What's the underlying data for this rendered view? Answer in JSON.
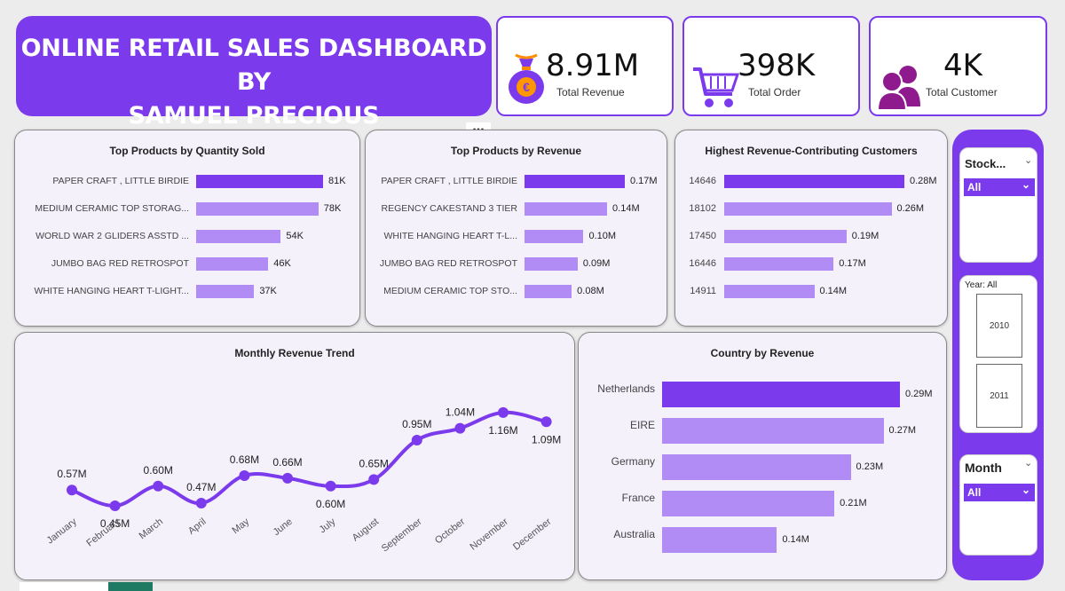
{
  "header": {
    "title_line1": "ONLINE RETAIL SALES DASHBOARD BY",
    "title_line2": "SAMUEL PRECIOUS"
  },
  "kpis": [
    {
      "value": "8.91M",
      "label": "Total Revenue",
      "icon": "money-bag-euro-icon"
    },
    {
      "value": "398K",
      "label": "Total Order",
      "icon": "shopping-cart-icon"
    },
    {
      "value": "4K",
      "label": "Total Customer",
      "icon": "users-icon"
    }
  ],
  "colors": {
    "accent": "#7c3aed",
    "bar_light": "#b28cf5",
    "card_bg": "#f4f1fb"
  },
  "more_options": "...",
  "chart_data": [
    {
      "type": "bar",
      "title": "Top Products by Quantity Sold",
      "categories": [
        "PAPER CRAFT , LITTLE BIRDIE",
        "MEDIUM CERAMIC TOP STORAG...",
        "WORLD WAR 2 GLIDERS ASSTD ...",
        "JUMBO BAG RED RETROSPOT",
        "WHITE HANGING HEART T-LIGHT..."
      ],
      "values": [
        81000,
        78000,
        54000,
        46000,
        37000
      ],
      "data_labels": [
        "81K",
        "78K",
        "54K",
        "46K",
        "37K"
      ]
    },
    {
      "type": "bar",
      "title": "Top Products by Revenue",
      "categories": [
        "PAPER CRAFT , LITTLE BIRDIE",
        "REGENCY CAKESTAND 3 TIER",
        "WHITE HANGING HEART T-L...",
        "JUMBO BAG RED RETROSPOT",
        "MEDIUM CERAMIC TOP STO..."
      ],
      "values": [
        0.17,
        0.14,
        0.1,
        0.09,
        0.08
      ],
      "data_labels": [
        "0.17M",
        "0.14M",
        "0.10M",
        "0.09M",
        "0.08M"
      ]
    },
    {
      "type": "bar",
      "title": "Highest Revenue-Contributing Customers",
      "categories": [
        "14646",
        "18102",
        "17450",
        "16446",
        "14911"
      ],
      "values": [
        0.28,
        0.26,
        0.19,
        0.17,
        0.14
      ],
      "data_labels": [
        "0.28M",
        "0.26M",
        "0.19M",
        "0.17M",
        "0.14M"
      ]
    },
    {
      "type": "line",
      "title": "Monthly Revenue Trend",
      "categories": [
        "January",
        "February",
        "March",
        "April",
        "May",
        "June",
        "July",
        "August",
        "September",
        "October",
        "November",
        "December"
      ],
      "values": [
        0.57,
        0.45,
        0.6,
        0.47,
        0.68,
        0.66,
        0.6,
        0.65,
        0.95,
        1.04,
        1.16,
        1.09
      ],
      "data_labels": [
        "0.57M",
        "0.45M",
        "0.60M",
        "0.47M",
        "0.68M",
        "0.66M",
        "0.60M",
        "0.65M",
        "0.95M",
        "1.04M",
        "1.16M",
        "1.09M"
      ]
    },
    {
      "type": "bar",
      "title": "Country by Revenue",
      "categories": [
        "Netherlands",
        "EIRE",
        "Germany",
        "France",
        "Australia"
      ],
      "values": [
        0.29,
        0.27,
        0.23,
        0.21,
        0.14
      ],
      "data_labels": [
        "0.29M",
        "0.27M",
        "0.23M",
        "0.21M",
        "0.14M"
      ]
    }
  ],
  "slicers": {
    "stock": {
      "title": "Stock...",
      "selected": "All"
    },
    "year": {
      "title": "Year: All",
      "options": [
        "2010",
        "2011"
      ]
    },
    "month": {
      "title": "Month",
      "selected": "All"
    }
  }
}
